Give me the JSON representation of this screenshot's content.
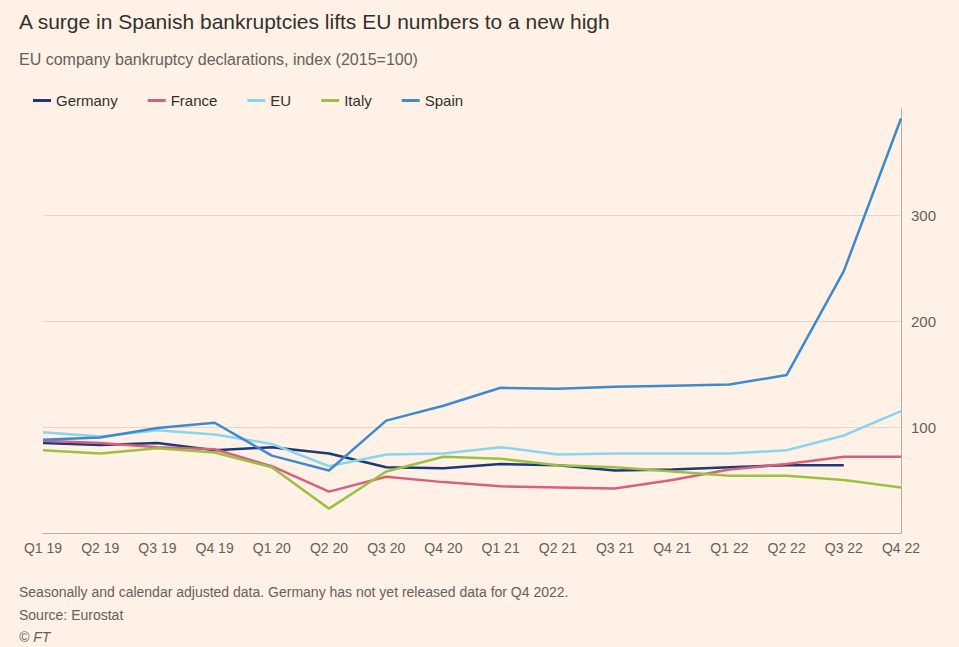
{
  "chart_data": {
    "type": "line",
    "title": "A surge in Spanish bankruptcies lifts EU numbers to a new high",
    "subtitle": "EU company bankruptcy declarations, index (2015=100)",
    "footnote": "Seasonally and calendar adjusted data. Germany has not yet released data for Q4 2022.",
    "source": "Source: Eurostat",
    "credit": "© FT",
    "categories": [
      "Q1 19",
      "Q2 19",
      "Q3 19",
      "Q4 19",
      "Q1 20",
      "Q2 20",
      "Q3 20",
      "Q4 20",
      "Q1 21",
      "Q2 21",
      "Q3 21",
      "Q4 21",
      "Q1 22",
      "Q2 22",
      "Q3 22",
      "Q4 22"
    ],
    "series": [
      {
        "name": "Germany",
        "color": "#1b3a78",
        "values": [
          85,
          83,
          85,
          78,
          81,
          75,
          62,
          61,
          65,
          64,
          59,
          60,
          62,
          64,
          64,
          null
        ]
      },
      {
        "name": "France",
        "color": "#d6607d",
        "values": [
          87,
          85,
          81,
          79,
          63,
          39,
          53,
          48,
          44,
          43,
          42,
          50,
          60,
          65,
          72,
          72
        ]
      },
      {
        "name": "EU",
        "color": "#8ad4ec",
        "values": [
          95,
          91,
          97,
          93,
          84,
          63,
          74,
          75,
          81,
          74,
          75,
          75,
          75,
          78,
          92,
          115
        ]
      },
      {
        "name": "Italy",
        "color": "#9cc043",
        "values": [
          78,
          75,
          80,
          76,
          62,
          23,
          58,
          72,
          70,
          64,
          62,
          58,
          54,
          54,
          50,
          43
        ]
      },
      {
        "name": "Spain",
        "color": "#3d8ad0",
        "values": [
          88,
          90,
          99,
          104,
          73,
          59,
          106,
          120,
          137,
          136,
          138,
          139,
          140,
          149,
          247,
          391
        ]
      }
    ],
    "ylim": [
      0,
      400
    ],
    "yticks": [
      100,
      200,
      300
    ],
    "grid": true,
    "legend": "top-left"
  }
}
